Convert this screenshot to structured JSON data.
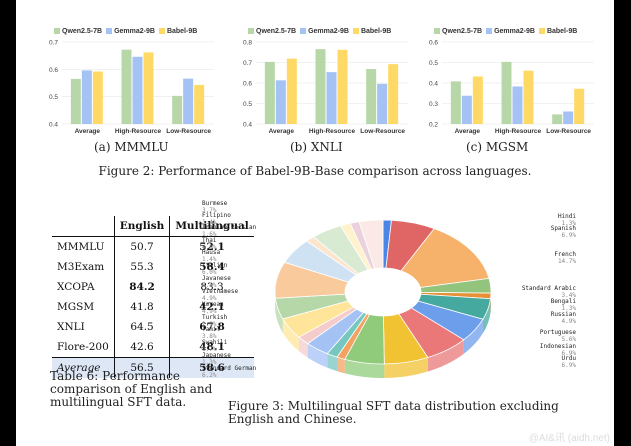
{
  "colors": {
    "qwen": "#b7d7a8",
    "gemma": "#a4c2f4",
    "babel": "#ffd966"
  },
  "chart_data": [
    {
      "type": "bar",
      "caption": "(a) MMMLU",
      "categories": [
        "Average",
        "High-Resource",
        "Low-Resource"
      ],
      "series": [
        {
          "name": "Qwen2.5-7B",
          "values": [
            0.565,
            0.672,
            0.503
          ]
        },
        {
          "name": "Gemma2-9B",
          "values": [
            0.596,
            0.646,
            0.566
          ]
        },
        {
          "name": "Babel-9B",
          "values": [
            0.592,
            0.662,
            0.543
          ]
        }
      ],
      "ylim": [
        0.4,
        0.7
      ],
      "ticks": [
        "0.4",
        "0.5",
        "0.6",
        "0.7"
      ]
    },
    {
      "type": "bar",
      "caption": "(b) XNLI",
      "categories": [
        "Average",
        "High-Resource",
        "Low-Resource"
      ],
      "series": [
        {
          "name": "Qwen2.5-7B",
          "values": [
            0.703,
            0.765,
            0.668
          ]
        },
        {
          "name": "Gemma2-9B",
          "values": [
            0.613,
            0.653,
            0.596
          ]
        },
        {
          "name": "Babel-9B",
          "values": [
            0.719,
            0.762,
            0.692
          ]
        }
      ],
      "ylim": [
        0.4,
        0.8
      ],
      "ticks": [
        "0.4",
        "0.5",
        "0.6",
        "0.7",
        "0.8"
      ]
    },
    {
      "type": "bar",
      "caption": "(c) MGSM",
      "categories": [
        "Average",
        "High-Resource",
        "Low-Resource"
      ],
      "series": [
        {
          "name": "Qwen2.5-7B",
          "values": [
            0.408,
            0.503,
            0.247
          ]
        },
        {
          "name": "Gemma2-9B",
          "values": [
            0.338,
            0.383,
            0.261
          ]
        },
        {
          "name": "Babel-9B",
          "values": [
            0.432,
            0.46,
            0.372
          ]
        }
      ],
      "ylim": [
        0.2,
        0.6
      ],
      "ticks": [
        "0.2",
        "0.3",
        "0.4",
        "0.5",
        "0.6"
      ]
    },
    {
      "type": "pie",
      "caption": "Figure 3: Multilingual SFT data distribution excluding English and Chinese.",
      "slices": [
        {
          "label": "Hindi",
          "pct": "1.3%",
          "value": 1.3,
          "color": "#4a86e8"
        },
        {
          "label": "Spanish",
          "pct": "6.9%",
          "value": 6.9,
          "color": "#e06666"
        },
        {
          "label": "French",
          "pct": "14.7%",
          "value": 14.7,
          "color": "#f6b26b"
        },
        {
          "label": "Standard Arabic",
          "pct": "3.4%",
          "value": 3.4,
          "color": "#93c47d"
        },
        {
          "label": "Bengali",
          "pct": "1.3%",
          "value": 1.3,
          "color": "#e69138"
        },
        {
          "label": "Russian",
          "pct": "4.9%",
          "value": 4.9,
          "color": "#45a9a0"
        },
        {
          "label": "Portuguese",
          "pct": "5.6%",
          "value": 5.6,
          "color": "#6d9eeb"
        },
        {
          "label": "Indonesian",
          "pct": "6.9%",
          "value": 6.9,
          "color": "#ea7878"
        },
        {
          "label": "Urdu",
          "pct": "6.9%",
          "value": 6.9,
          "color": "#f1c232"
        },
        {
          "label": "Standard German",
          "pct": "6.2%",
          "value": 6.2,
          "color": "#8fcb7a"
        },
        {
          "label": "Japanese",
          "pct": "1.3%",
          "value": 1.3,
          "color": "#f4a261"
        },
        {
          "label": "Swahili",
          "pct": "1.7%",
          "value": 1.7,
          "color": "#76c7c0"
        },
        {
          "label": "Tamil",
          "pct": "3.8%",
          "value": 3.8,
          "color": "#a4c2f4"
        },
        {
          "label": "Turkish",
          "pct": "2.0%",
          "value": 2.0,
          "color": "#f4cccc"
        },
        {
          "label": "Korean",
          "pct": "4.9%",
          "value": 4.9,
          "color": "#ffe599"
        },
        {
          "label": "Vietnamese",
          "pct": "4.9%",
          "value": 4.9,
          "color": "#b6d7a8"
        },
        {
          "label": "Javanese",
          "pct": "8.5%",
          "value": 8.5,
          "color": "#f9cb9c"
        },
        {
          "label": "Italian",
          "pct": "6.0%",
          "value": 6.0,
          "color": "#cfe2f3"
        },
        {
          "label": "Hausa",
          "pct": "1.4%",
          "value": 1.4,
          "color": "#fce5cd"
        },
        {
          "label": "Thai",
          "pct": "4.9%",
          "value": 4.9,
          "color": "#d9ead3"
        },
        {
          "label": "Iranian Persian",
          "pct": "1.6%",
          "value": 1.6,
          "color": "#fff2cc"
        },
        {
          "label": "Filipino",
          "pct": "1.4%",
          "value": 1.4,
          "color": "#ead1dc"
        },
        {
          "label": "Burmese",
          "pct": "3.7%",
          "value": 3.7,
          "color": "#fbe9e7"
        }
      ]
    }
  ],
  "figure2_caption": "Figure 2: Performance of Babel-9B-Base comparison across languages.",
  "table": {
    "headers": [
      "",
      "English",
      "Multilingual"
    ],
    "rows": [
      {
        "name": "MMMLU",
        "english": "50.7",
        "multi": "52.1"
      },
      {
        "name": "M3Exam",
        "english": "55.3",
        "multi": "58.4"
      },
      {
        "name": "XCOPA",
        "english": "84.2",
        "multi": "83.3"
      },
      {
        "name": "MGSM",
        "english": "41.8",
        "multi": "42.1"
      },
      {
        "name": "XNLI",
        "english": "64.5",
        "multi": "67.8"
      },
      {
        "name": "Flore-200",
        "english": "42.6",
        "multi": "48.1"
      }
    ],
    "average": {
      "name": "Average",
      "english": "56.5",
      "multi": "58.6"
    },
    "caption": "Table 6: Performance comparison of English and multilingual SFT data."
  },
  "watermark": "@AI&讯 (aidh.net)"
}
